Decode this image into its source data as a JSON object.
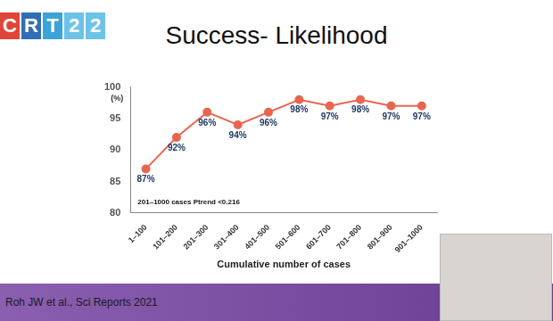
{
  "chart_data": {
    "type": "line",
    "title": "Success- Likelihood",
    "categories": [
      "1–100",
      "101–200",
      "201–300",
      "301–400",
      "401–500",
      "501–600",
      "601–700",
      "701–800",
      "801–900",
      "901–1000"
    ],
    "values": [
      87,
      92,
      96,
      94,
      96,
      98,
      97,
      98,
      97,
      97
    ],
    "value_labels": [
      "87%",
      "92%",
      "96%",
      "94%",
      "96%",
      "98%",
      "97%",
      "98%",
      "97%",
      "97%"
    ],
    "color": "#e8664f",
    "marker": "circle",
    "line_style": "solid",
    "x_label": "Cumulative number of cases",
    "y_label": "(%)",
    "ylim": [
      80,
      100
    ],
    "yticks": [
      80,
      85,
      90,
      95,
      100
    ],
    "grid": false,
    "data_labels": true,
    "annotations": [
      "201–1000 cases Ptrend <0.216",
      "Roh JW et al., Sci Reports 2021",
      "CRT22"
    ]
  }
}
